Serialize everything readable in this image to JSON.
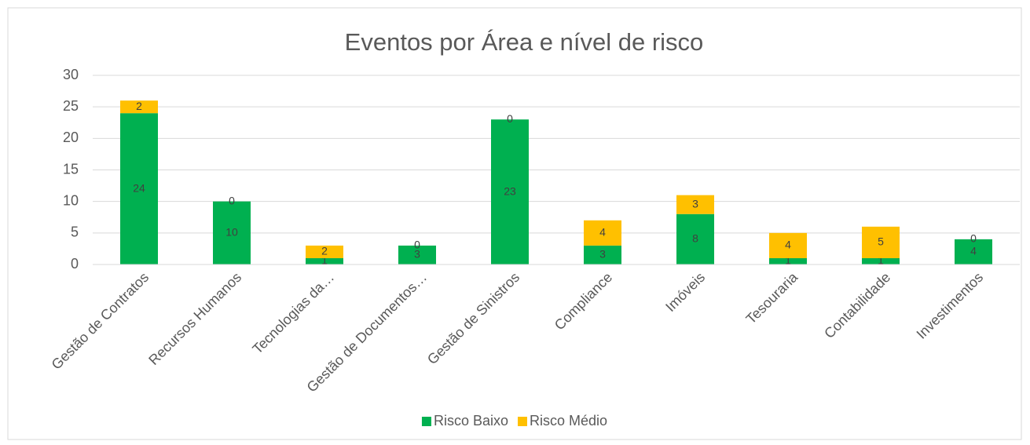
{
  "chart_data": {
    "type": "bar",
    "stacked": true,
    "title": "Eventos por Área e nível de risco",
    "categories": [
      "Gestão de Contratos",
      "Recursos Humanos",
      "Tecnologias da…",
      "Gestão de Documentos…",
      "Gestão de Sinistros",
      "Compliance",
      "Imóveis",
      "Tesouraria",
      "Contabilidade",
      "Investimentos"
    ],
    "series": [
      {
        "name": "Risco Baixo",
        "color": "#00b050",
        "values": [
          24,
          10,
          1,
          3,
          23,
          3,
          8,
          1,
          1,
          4
        ]
      },
      {
        "name": "Risco Médio",
        "color": "#ffc000",
        "values": [
          2,
          0,
          2,
          0,
          0,
          4,
          3,
          4,
          5,
          0
        ]
      }
    ],
    "ylim": [
      0,
      30
    ],
    "yticks": [
      0,
      5,
      10,
      15,
      20,
      25,
      30
    ],
    "grid": true,
    "legend": "bottom"
  }
}
